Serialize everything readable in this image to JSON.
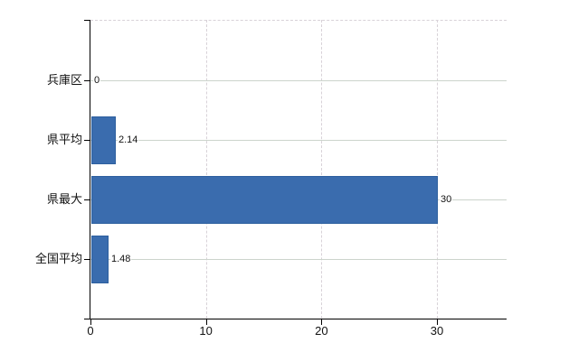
{
  "chart_data": {
    "type": "bar",
    "orientation": "horizontal",
    "title": "",
    "xlabel": "",
    "ylabel": "",
    "categories": [
      "兵庫区",
      "県平均",
      "県最大",
      "全国平均"
    ],
    "values": [
      0,
      2.14,
      30,
      1.48
    ],
    "value_labels": [
      "0",
      "2.14",
      "30",
      "1.48"
    ],
    "x_ticks": [
      0,
      10,
      20,
      30
    ],
    "x_tick_labels": [
      "0",
      "10",
      "20",
      "30"
    ],
    "xlim": [
      0,
      36
    ],
    "legend": "none",
    "grid": {
      "horizontal": "solid",
      "vertical": "dashed",
      "top_border": "dashed"
    },
    "colors": {
      "bar": "#3a6cae",
      "bar_border": "#2d5f9e",
      "axis": "#000000",
      "grid_h": "#ccd4cc",
      "grid_v": "#d8d2d8",
      "text": "#111111",
      "background": "#ffffff"
    }
  }
}
